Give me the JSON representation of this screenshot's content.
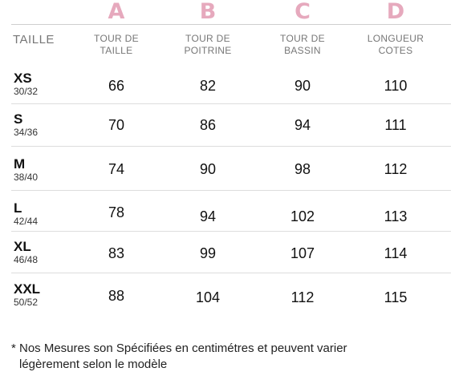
{
  "column_letters": [
    {
      "letter": "A",
      "color": "#e6a9bd"
    },
    {
      "letter": "B",
      "color": "#e6a9bd"
    },
    {
      "letter": "C",
      "color": "#e6a9bd"
    },
    {
      "letter": "D",
      "color": "#e6a9bd"
    }
  ],
  "table": {
    "size_header": "TAILLE",
    "columns": [
      {
        "line1": "TOUR DE",
        "line2": "TAILLE"
      },
      {
        "line1": "TOUR DE",
        "line2": "POITRINE"
      },
      {
        "line1": "TOUR DE",
        "line2": "BASSIN"
      },
      {
        "line1": "LONGUEUR",
        "line2": "COTES"
      }
    ],
    "rows": [
      {
        "size": "XS",
        "eu": "30/32",
        "values": [
          "66",
          "82",
          "90",
          "110"
        ]
      },
      {
        "size": "S",
        "eu": "34/36",
        "values": [
          "70",
          "86",
          "94",
          "111"
        ]
      },
      {
        "size": "M",
        "eu": "38/40",
        "values": [
          "74",
          "90",
          "98",
          "112"
        ]
      },
      {
        "size": "L",
        "eu": "42/44",
        "values": [
          "78",
          "94",
          "102",
          "113"
        ]
      },
      {
        "size": "XL",
        "eu": "46/48",
        "values": [
          "83",
          "99",
          "107",
          "114"
        ]
      },
      {
        "size": "XXL",
        "eu": "50/52",
        "values": [
          "88",
          "104",
          "112",
          "115"
        ]
      }
    ]
  },
  "footnote": {
    "line1": "* Nos Mesures son Spécifiées en centimétres et peuvent varier",
    "line2": "légèrement selon le modèle"
  }
}
